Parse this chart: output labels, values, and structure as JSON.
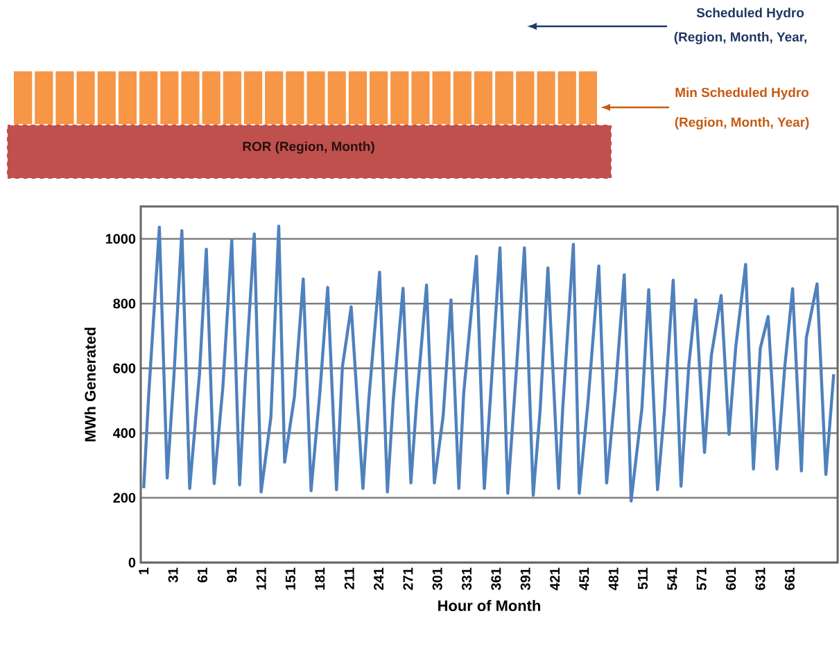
{
  "chart_data": {
    "type": "line",
    "xlabel": "Hour of Month",
    "ylabel": "MWh Generated",
    "annotations": [
      "Scheduled Hydro",
      "(Region, Month, Year,",
      "Min Scheduled Hydro",
      "(Region, Month, Year)",
      "ROR (Region, Month)"
    ],
    "x": [
      1,
      6,
      17,
      25,
      32,
      40,
      48,
      58,
      65,
      73,
      82,
      91,
      99,
      105,
      114,
      121,
      131,
      139,
      145,
      155,
      164,
      172,
      181,
      189,
      198,
      204,
      213,
      225,
      231,
      242,
      250,
      256,
      266,
      274,
      280,
      290,
      298,
      307,
      315,
      323,
      328,
      341,
      349,
      355,
      365,
      373,
      382,
      390,
      399,
      406,
      414,
      425,
      429,
      440,
      446,
      455,
      466,
      474,
      483,
      492,
      499,
      510,
      517,
      526,
      533,
      542,
      550,
      558,
      565,
      574,
      581,
      591,
      599,
      606,
      616,
      624,
      631,
      639,
      648,
      656,
      664,
      673,
      678,
      689,
      698,
      706
    ],
    "values": [
      230,
      512,
      1036,
      261,
      582,
      1025,
      229,
      582,
      968,
      244,
      546,
      996,
      240,
      576,
      1015,
      218,
      450,
      1039,
      310,
      512,
      876,
      222,
      525,
      850,
      225,
      604,
      790,
      229,
      503,
      897,
      218,
      503,
      847,
      246,
      503,
      857,
      246,
      454,
      811,
      229,
      525,
      946,
      229,
      497,
      972,
      214,
      604,
      972,
      208,
      469,
      910,
      229,
      469,
      983,
      214,
      497,
      916,
      246,
      533,
      889,
      190,
      475,
      843,
      225,
      469,
      872,
      236,
      610,
      811,
      340,
      640,
      825,
      396,
      668,
      921,
      289,
      662,
      760,
      289,
      604,
      846,
      283,
      694,
      861,
      272,
      582
    ],
    "color": "#4f81bd",
    "line_style": "solid",
    "marker": "none",
    "xlim": [
      -2,
      710
    ],
    "xticks": [
      1,
      31,
      61,
      91,
      121,
      151,
      181,
      211,
      241,
      271,
      301,
      331,
      361,
      391,
      421,
      451,
      481,
      511,
      541,
      571,
      601,
      631,
      661
    ],
    "ylim": [
      0,
      1100
    ],
    "yticks": [
      0,
      200,
      400,
      600,
      800,
      1000
    ],
    "grid": "y"
  }
}
